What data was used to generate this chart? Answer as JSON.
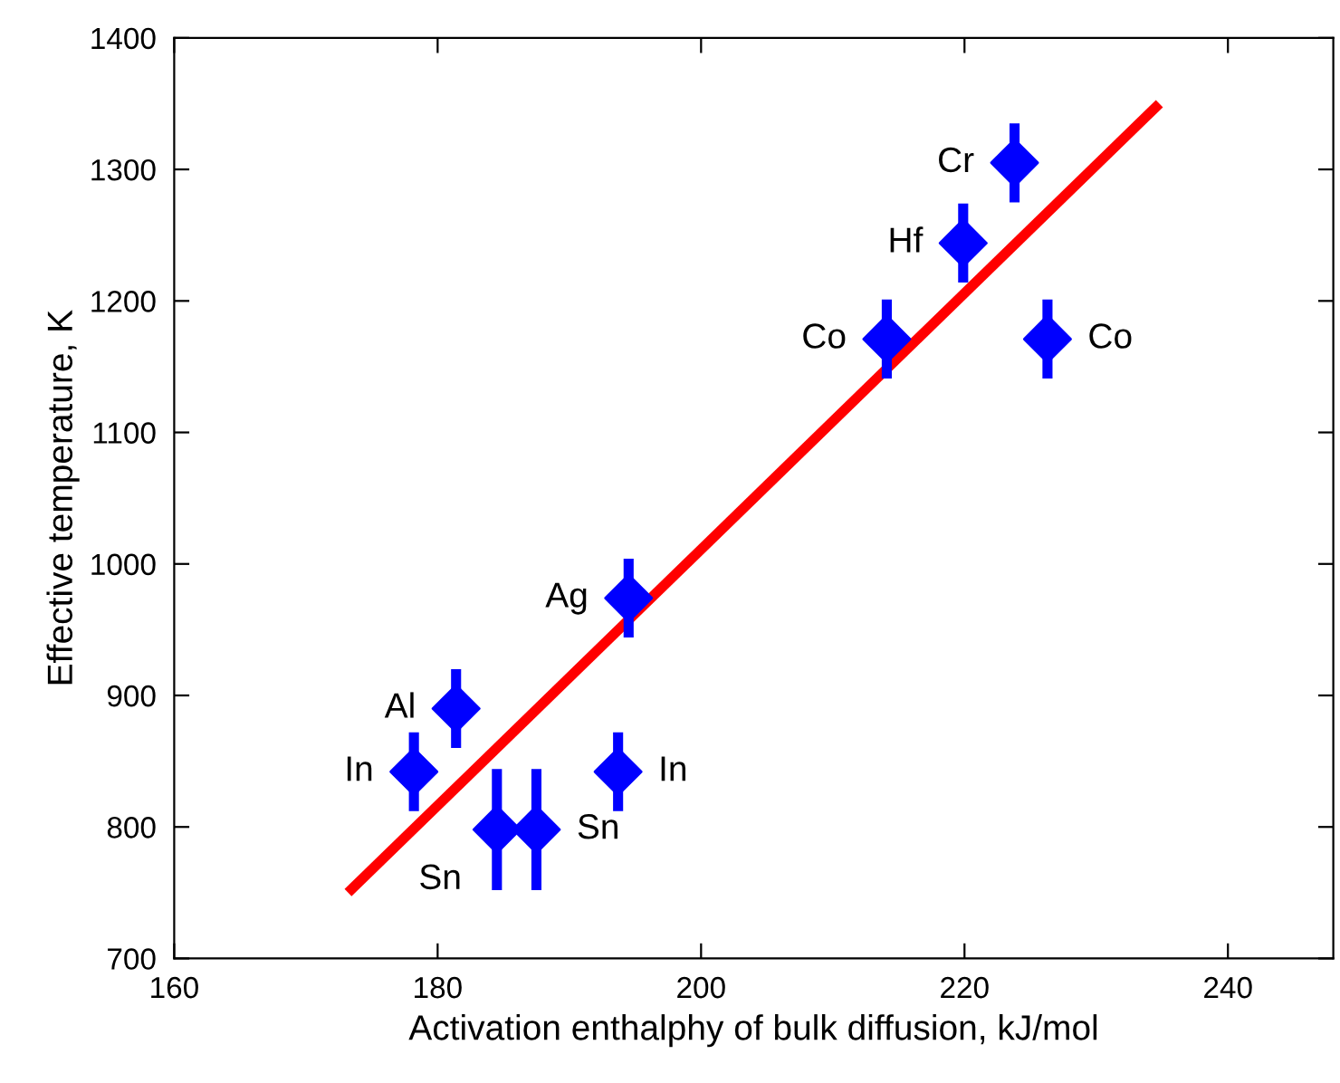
{
  "chart_data": {
    "type": "scatter",
    "xlabel": "Activation enthalphy of bulk diffusion, kJ/mol",
    "ylabel": "Effective temperature, K",
    "xlim": [
      160,
      248
    ],
    "ylim": [
      700,
      1400
    ],
    "xticks": [
      160,
      180,
      200,
      220,
      240
    ],
    "yticks": [
      700,
      800,
      900,
      1000,
      1100,
      1200,
      1300,
      1400
    ],
    "grid": false,
    "legend": false,
    "series": [
      {
        "type": "line",
        "color": "#ff0000",
        "x": [
          173.2,
          234.8
        ],
        "values": [
          750,
          1350
        ],
        "marker": "none",
        "line_style": "solid"
      },
      {
        "color": "#0000ff",
        "marker": "diamond",
        "x": [
          223.8,
          219.9,
          214.1,
          226.3,
          194.5,
          181.4,
          178.2,
          193.7,
          184.5,
          187.5
        ],
        "values": [
          1305,
          1244,
          1171,
          1171,
          974,
          890,
          842,
          842,
          798,
          798
        ],
        "errors": [
          30,
          30,
          30,
          30,
          30,
          30,
          30,
          30,
          46,
          46
        ]
      }
    ],
    "annotations": [
      {
        "text": "Cr",
        "x": 223.8,
        "y": 1305
      },
      {
        "text": "Hf",
        "x": 219.9,
        "y": 1244
      },
      {
        "text": "Co",
        "x": 214.1,
        "y": 1171
      },
      {
        "text": "Co",
        "x": 226.3,
        "y": 1171
      },
      {
        "text": "Ag",
        "x": 194.5,
        "y": 974
      },
      {
        "text": "Al",
        "x": 181.4,
        "y": 890
      },
      {
        "text": "In",
        "x": 178.2,
        "y": 842
      },
      {
        "text": "In",
        "x": 193.7,
        "y": 842
      },
      {
        "text": "Sn",
        "x": 184.5,
        "y": 798
      },
      {
        "text": "Sn",
        "x": 187.5,
        "y": 798
      }
    ]
  }
}
